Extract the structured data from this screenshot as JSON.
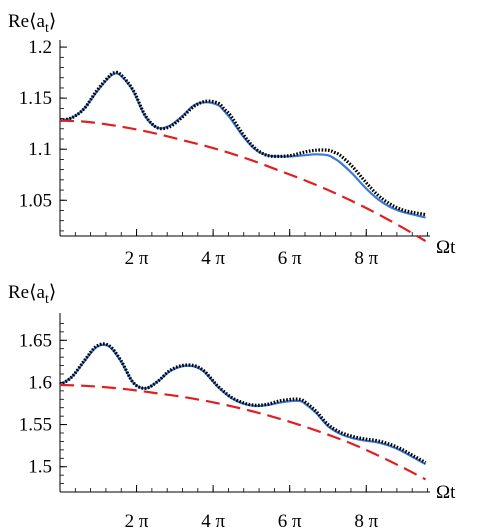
{
  "chart_data": [
    {
      "type": "line",
      "ylabel": "Re⟨a",
      "ylabel_sub": "t",
      "ylabel_close": "⟩",
      "xlabel": "Ωt",
      "xlim": [
        0,
        30.2
      ],
      "ylim": [
        1.015,
        1.205
      ],
      "x_ticks": [
        {
          "value": 6.2832,
          "label": "2 π"
        },
        {
          "value": 12.5664,
          "label": "4 π"
        },
        {
          "value": 18.8496,
          "label": "6 π"
        },
        {
          "value": 25.1327,
          "label": "8 π"
        }
      ],
      "y_ticks": [
        {
          "value": 1.05,
          "label": "1.05"
        },
        {
          "value": 1.1,
          "label": "1.1"
        },
        {
          "value": 1.15,
          "label": "1.15"
        },
        {
          "value": 1.2,
          "label": "1.2"
        }
      ],
      "grid": false,
      "series": [
        {
          "style": "dotted",
          "color": "#000000",
          "x": [
            0,
            1,
            2,
            3,
            4,
            4.5,
            5,
            6,
            7,
            8,
            9,
            10,
            11,
            12,
            13,
            13.5,
            14,
            15,
            16,
            17,
            18,
            19,
            20,
            21,
            22,
            22.5,
            23,
            24,
            25,
            26,
            27,
            28,
            29,
            30
          ],
          "y": [
            1.128,
            1.131,
            1.14,
            1.157,
            1.171,
            1.175,
            1.173,
            1.158,
            1.133,
            1.121,
            1.122,
            1.131,
            1.142,
            1.147,
            1.145,
            1.139,
            1.133,
            1.115,
            1.101,
            1.094,
            1.093,
            1.094,
            1.097,
            1.099,
            1.099,
            1.097,
            1.094,
            1.083,
            1.069,
            1.056,
            1.047,
            1.041,
            1.038,
            1.036
          ]
        },
        {
          "style": "solid",
          "color": "#3a79d6",
          "x": [
            0,
            1,
            2,
            3,
            4,
            4.5,
            5,
            6,
            7,
            8,
            9,
            10,
            11,
            12,
            13,
            13.5,
            14,
            15,
            16,
            17,
            18,
            19,
            20,
            21,
            22,
            22.5,
            23,
            24,
            25,
            26,
            27,
            28,
            29,
            30
          ],
          "y": [
            1.128,
            1.131,
            1.14,
            1.156,
            1.17,
            1.174,
            1.172,
            1.157,
            1.132,
            1.121,
            1.123,
            1.132,
            1.143,
            1.146,
            1.143,
            1.137,
            1.13,
            1.113,
            1.1,
            1.094,
            1.093,
            1.093,
            1.094,
            1.095,
            1.094,
            1.091,
            1.087,
            1.076,
            1.063,
            1.052,
            1.044,
            1.039,
            1.036,
            1.033
          ]
        },
        {
          "style": "dashed",
          "color": "#e02020",
          "x": [
            0,
            2,
            4,
            6,
            8,
            10,
            12,
            14,
            16,
            18,
            20,
            22,
            24,
            26,
            28,
            30
          ],
          "y": [
            1.128,
            1.127,
            1.124,
            1.12,
            1.115,
            1.109,
            1.103,
            1.096,
            1.088,
            1.079,
            1.07,
            1.06,
            1.049,
            1.037,
            1.024,
            1.01
          ]
        }
      ]
    },
    {
      "type": "line",
      "ylabel": "Re⟨a",
      "ylabel_sub": "t",
      "ylabel_close": "⟩",
      "xlabel": "Ωt",
      "xlim": [
        0,
        30.2
      ],
      "ylim": [
        1.47,
        1.68
      ],
      "x_ticks": [
        {
          "value": 6.2832,
          "label": "2 π"
        },
        {
          "value": 12.5664,
          "label": "4 π"
        },
        {
          "value": 18.8496,
          "label": "6 π"
        },
        {
          "value": 25.1327,
          "label": "8 π"
        }
      ],
      "y_ticks": [
        {
          "value": 1.5,
          "label": "1.5"
        },
        {
          "value": 1.55,
          "label": "1.55"
        },
        {
          "value": 1.6,
          "label": "1.6"
        },
        {
          "value": 1.65,
          "label": "1.65"
        }
      ],
      "grid": false,
      "series": [
        {
          "style": "dotted",
          "color": "#000000",
          "x": [
            0,
            1,
            2,
            3,
            4,
            5,
            6,
            7,
            8,
            9,
            10,
            11,
            11.8,
            12.5,
            13,
            14,
            15,
            16,
            17,
            18,
            19,
            19.6,
            20,
            21,
            22,
            23,
            24,
            25,
            26,
            27,
            28,
            29,
            30
          ],
          "y": [
            1.597,
            1.607,
            1.626,
            1.643,
            1.644,
            1.626,
            1.6,
            1.593,
            1.601,
            1.614,
            1.62,
            1.62,
            1.614,
            1.603,
            1.595,
            1.583,
            1.576,
            1.573,
            1.574,
            1.578,
            1.58,
            1.58,
            1.578,
            1.566,
            1.55,
            1.541,
            1.536,
            1.533,
            1.531,
            1.527,
            1.521,
            1.513,
            1.505
          ]
        },
        {
          "style": "solid",
          "color": "#3a79d6",
          "x": [
            0,
            1,
            2,
            3,
            4,
            5,
            6,
            7,
            8,
            9,
            10,
            11,
            11.8,
            12.5,
            13,
            14,
            15,
            16,
            17,
            18,
            19,
            19.6,
            20,
            21,
            22,
            23,
            24,
            25,
            26,
            27,
            28,
            29,
            30
          ],
          "y": [
            1.597,
            1.607,
            1.625,
            1.642,
            1.643,
            1.625,
            1.6,
            1.593,
            1.601,
            1.613,
            1.619,
            1.619,
            1.613,
            1.602,
            1.594,
            1.582,
            1.575,
            1.572,
            1.573,
            1.576,
            1.578,
            1.578,
            1.576,
            1.564,
            1.548,
            1.539,
            1.534,
            1.531,
            1.529,
            1.525,
            1.519,
            1.511,
            1.503
          ]
        },
        {
          "style": "dashed",
          "color": "#e02020",
          "x": [
            0,
            2,
            4,
            6,
            8,
            10,
            12,
            14,
            16,
            18,
            20,
            22,
            24,
            26,
            28,
            30
          ],
          "y": [
            1.597,
            1.596,
            1.594,
            1.591,
            1.587,
            1.583,
            1.578,
            1.572,
            1.565,
            1.557,
            1.548,
            1.538,
            1.527,
            1.514,
            1.5,
            1.485
          ]
        }
      ]
    }
  ]
}
